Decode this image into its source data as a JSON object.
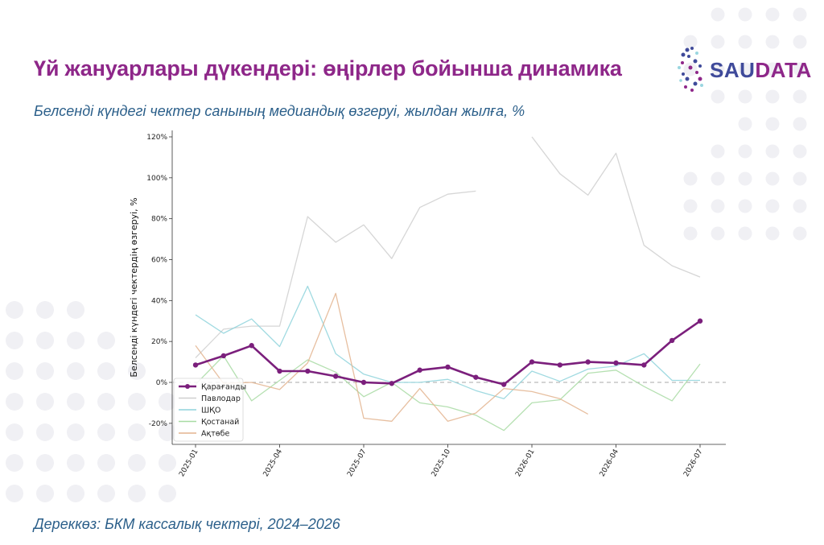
{
  "title": "Үй жануарлары дүкендері: өңірлер бойынша динамика",
  "subtitle": "Белсенді күндегі чектер санының медиандық өзгеруі, жылдан жылға, %",
  "source": "Дереккөз: БКМ кассалық чектері, 2024–2026",
  "logo": {
    "part1": "SAU",
    "part2": "DATA"
  },
  "colors": {
    "title": "#8e2789",
    "text": "#2b5f8a",
    "logo_blue": "#3f4a9a",
    "logo_purple": "#8e2789"
  },
  "chart_data": {
    "type": "line",
    "title": "",
    "xlabel": "",
    "ylabel": "Белсенді күндегі чектердің өзгеруі, %",
    "ylim": [
      -30,
      120
    ],
    "yticks": [
      -20,
      0,
      20,
      40,
      60,
      80,
      100,
      120
    ],
    "ytick_labels": [
      "-20%",
      "0%",
      "20%",
      "40%",
      "60%",
      "80%",
      "100%",
      "120%"
    ],
    "x": [
      "2025-01",
      "2025-02",
      "2025-03",
      "2025-04",
      "2025-05",
      "2025-06",
      "2025-07",
      "2025-08",
      "2025-09",
      "2025-10",
      "2025-11",
      "2025-12",
      "2026-01",
      "2026-02",
      "2026-03",
      "2026-04",
      "2026-05",
      "2026-06",
      "2026-07"
    ],
    "xticks": [
      "2025-01",
      "2025-04",
      "2025-07",
      "2025-10",
      "2026-01",
      "2026-04",
      "2026-07"
    ],
    "reference_line": 0,
    "legend_position": "lower-left",
    "grid": false,
    "series": [
      {
        "name": "Қарағанды",
        "color": "#7b1f7c",
        "highlight": true,
        "values": [
          8.5,
          13,
          18,
          5.5,
          5.5,
          3,
          0,
          -0.5,
          6,
          7.5,
          2.5,
          -1,
          10,
          8.5,
          10,
          9.5,
          8.5,
          20.5,
          30
        ]
      },
      {
        "name": "Павлодар",
        "color": "#cfcfcf",
        "values": [
          12,
          26,
          27.5,
          27.5,
          81,
          68.5,
          77,
          60.5,
          85.5,
          92,
          93.5,
          null,
          120,
          102,
          91.5,
          112,
          67,
          57,
          51.5
        ]
      },
      {
        "name": "ШҚО",
        "color": "#8fd3dc",
        "values": [
          33,
          24,
          31,
          17.5,
          47,
          14,
          4,
          0,
          0,
          1.5,
          -4,
          -8,
          5.5,
          0.5,
          6.5,
          8,
          14,
          1,
          1
        ]
      },
      {
        "name": "Қостанай",
        "color": "#a8dba3",
        "values": [
          -1,
          13,
          -9,
          1,
          11,
          5,
          -7,
          0,
          -10,
          -12,
          -16,
          -23.5,
          -10,
          -8.5,
          4.5,
          6,
          -2,
          -9,
          9
        ]
      },
      {
        "name": "Ақтөбе",
        "color": "#e3b48f",
        "values": [
          18,
          -0.5,
          0,
          -3.5,
          9.5,
          43.5,
          -17.5,
          -19,
          -3,
          -19,
          -15,
          -3,
          -4.5,
          -8,
          -15.5,
          null,
          null,
          null,
          null
        ]
      }
    ]
  }
}
